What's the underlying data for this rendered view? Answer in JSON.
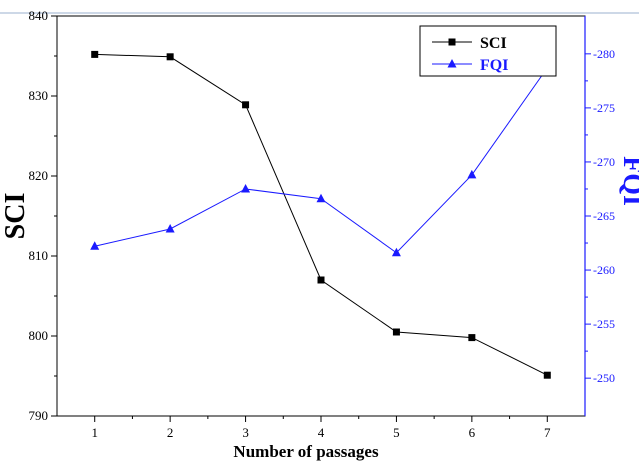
{
  "chart_data": {
    "type": "line",
    "xlabel": "Number of passages",
    "ylabel_left": "SCI",
    "ylabel_right": "FQI",
    "x": [
      1,
      2,
      3,
      4,
      5,
      6,
      7
    ],
    "xlim": [
      0.5,
      7.5
    ],
    "ylim_left": [
      790,
      840
    ],
    "ylim_right": [
      -246.5,
      -283.5
    ],
    "left_ticks": [
      "790",
      "800",
      "810",
      "820",
      "830",
      "840"
    ],
    "right_ticks": [
      "-250",
      "-255",
      "-260",
      "-265",
      "-270",
      "-275",
      "-280"
    ],
    "right_axis_inverted": true,
    "grid": false,
    "legend_position": "top-right",
    "series": [
      {
        "name": "SCI",
        "axis": "left",
        "marker": "square",
        "color": "#000000",
        "values": [
          835.2,
          834.9,
          828.9,
          807.0,
          800.5,
          799.8,
          795.1
        ]
      },
      {
        "name": "FQI",
        "axis": "right",
        "marker": "triangle",
        "color": "#1a1aff",
        "values": [
          -262.2,
          -263.8,
          -267.5,
          -266.6,
          -261.6,
          -268.8,
          -278.7
        ]
      }
    ]
  }
}
